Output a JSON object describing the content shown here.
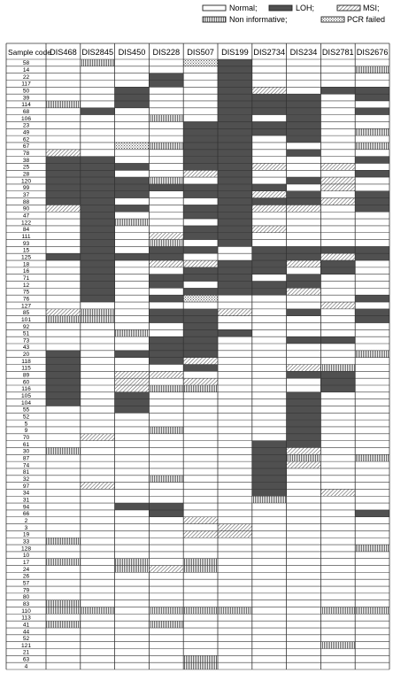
{
  "chart_data": {
    "type": "heatmap",
    "title": "",
    "row_header": "Sample code",
    "columns": [
      "DIS468",
      "DIS2845",
      "DIS450",
      "DIS228",
      "DIS507",
      "DIS199",
      "DIS2734",
      "DIS234",
      "DIS2781",
      "DIS2676"
    ],
    "rows": [
      "58",
      "14",
      "22",
      "117",
      "50",
      "39",
      "114",
      "68",
      "106",
      "23",
      "49",
      "62",
      "67",
      "78",
      "38",
      "25",
      "28",
      "120",
      "99",
      "37",
      "88",
      "90",
      "47",
      "122",
      "84",
      "111",
      "93",
      "15",
      "125",
      "18",
      "16",
      "71",
      "12",
      "75",
      "76",
      "127",
      "85",
      "101",
      "92",
      "51",
      "73",
      "43",
      "20",
      "118",
      "115",
      "89",
      "60",
      "116",
      "105",
      "104",
      "55",
      "52",
      "5",
      "9",
      "70",
      "61",
      "30",
      "87",
      "74",
      "81",
      "32",
      "97",
      "34",
      "31",
      "94",
      "66",
      "2",
      "3",
      "19",
      "33",
      "128",
      "10",
      "17",
      "24",
      "26",
      "57",
      "79",
      "80",
      "83",
      "110",
      "113",
      "41",
      "44",
      "52",
      "121",
      "21",
      "63",
      "4"
    ],
    "legend": [
      {
        "code": "N",
        "label": "Normal;"
      },
      {
        "code": "L",
        "label": "LOH;"
      },
      {
        "code": "M",
        "label": "MSI;"
      },
      {
        "code": "I",
        "label": "Non informative;"
      },
      {
        "code": "F",
        "label": "PCR failed"
      }
    ],
    "codes": {
      "N": "Normal",
      "L": "LOH",
      "M": "MSI",
      "I": "Non informative",
      "F": "PCR failed"
    },
    "grid": [
      "NINNFLNNNN",
      "NNNNNLNNNI",
      "NNNLNLNNNN",
      "NNNLNLNNNN",
      "NNLNNLMNLL",
      "NNLNNLLLNL",
      "INLNNLLLNN",
      "NLNNNLLLNL",
      "NNNINLNLNN",
      "NNNNLLLLNN",
      "NNNNLLLLNI",
      "NNNNLLNLNN",
      "NNFILLNNNI",
      "MNNNLLNLNN",
      "LLNNLLNNNL",
      "LLLNLLMNMN",
      "LLNNMLNNNL",
      "LLLINLNLMN",
      "LLLLLLLNMN",
      "LLLNLLMLNL",
      "LLNNNLLLML",
      "MLLNLLMMNL",
      "NLNNLLNNNN",
      "NLINNLNNNN",
      "NLNNLLMNNN",
      "NLNMLLNNNN",
      "NLNINLNNNN",
      "NLNLLNLLLL",
      "LLLLNNLLML",
      "NLNMMLLMLN",
      "NLNNLLLNLN",
      "NLNLLLNLNN",
      "NLNLNLLLNN",
      "NLNNLLLMNN",
      "NLNLFNNNNL",
      "NNNNNNNNMN",
      "MINLLMNLNL",
      "IINLLNNNNL",
      "NNNNLNNNNN",
      "NNINLLNNNN",
      "NNNLLNNLLN",
      "NNNLLNNNNN",
      "LNLLLNNNNI",
      "LNNLMNNNNN",
      "LNNNLNNMIN",
      "LNMMNNNLLN",
      "LNMNMNNNLN",
      "LNMIINNNLN",
      "LNLNNNNLNN",
      "LNLNNNNLNN",
      "NNLNNNNLNN",
      "NNNNNNNLNN",
      "NNNNNNNLNN",
      "NNNINNNLNN",
      "NMNNNNNLNN",
      "NNNNNNLLNN",
      "INNNNNLMNN",
      "NNNNNNLINI",
      "NNNNNNLMNN",
      "NNNNNNLNNN",
      "NNNINNLNNN",
      "NMNNNNLNNN",
      "NNNNNNLNMN",
      "NNNNNNINNN",
      "NNLLNNNNNN",
      "NNNLNNNNNL",
      "NNNNMNNNNN",
      "NNNNNMNNNN",
      "NNNNMMNNNN",
      "INNNNNNNNN",
      "NNNNNNNNNI",
      "NNNNNNNNNN",
      "INININNNNN",
      "NNIMINNNNN",
      "NNNNNNNNNN",
      "NNNNNNNNNN",
      "NNNNNNNNNN",
      "NNNNNNNNNN",
      "INNNNNNNNN",
      "IINIIINNII",
      "NNNNNNNNNN",
      "INNINNNNNN",
      "NNNNNNNNNN",
      "NNNNNNNNNN",
      "NNNNNNNNIN",
      "NNNNNNNNNN",
      "NNNNINNNNN",
      "NNNNINNNNN"
    ]
  }
}
